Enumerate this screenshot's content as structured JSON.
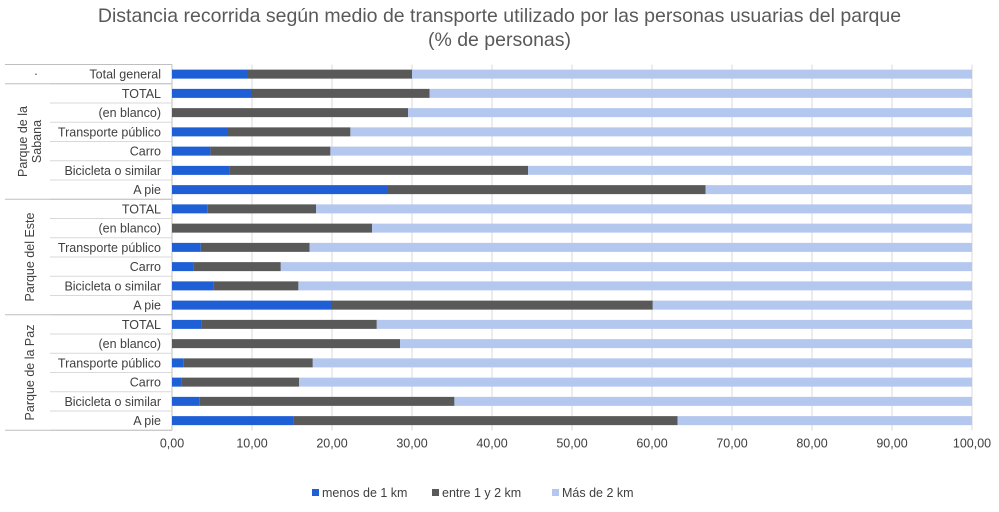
{
  "chart_data": {
    "type": "bar",
    "orientation": "horizontal",
    "stacked": true,
    "title": [
      "Distancia recorrida según medio de transporte utilizado por las personas usuarias del parque",
      "(% de personas)"
    ],
    "groups": [
      {
        "name": "·",
        "categories": [
          "Total general"
        ]
      },
      {
        "name": "Parque de la Sabana",
        "categories": [
          "TOTAL",
          "(en blanco)",
          "Transporte público",
          "Carro",
          "Bicicleta o similar",
          "A pie"
        ]
      },
      {
        "name": "Parque del Este",
        "categories": [
          "TOTAL",
          "(en blanco)",
          "Transporte público",
          "Carro",
          "Bicicleta o similar",
          "A pie"
        ]
      },
      {
        "name": "Parque de la Paz",
        "categories": [
          "TOTAL",
          "(en blanco)",
          "Transporte público",
          "Carro",
          "Bicicleta o similar",
          "A pie"
        ]
      }
    ],
    "series": [
      {
        "name": "menos de 1 km",
        "color": "#1f5fd6",
        "values": [
          9.5,
          10.0,
          0.0,
          7.0,
          4.8,
          7.2,
          27.0,
          4.4,
          0.0,
          3.6,
          2.7,
          5.2,
          20.0,
          3.7,
          0.0,
          1.4,
          1.2,
          3.4,
          15.2
        ]
      },
      {
        "name": "entre 1 y 2 km",
        "color": "#595959",
        "values": [
          20.5,
          22.2,
          29.5,
          15.3,
          15.0,
          37.3,
          39.7,
          13.6,
          25.0,
          13.6,
          10.9,
          10.6,
          40.1,
          21.9,
          28.5,
          16.2,
          14.7,
          31.9,
          48.0
        ]
      },
      {
        "name": "Más de 2 km",
        "color": "#b4c7ef",
        "values": [
          70.0,
          67.8,
          70.5,
          77.7,
          80.2,
          55.5,
          33.3,
          82.0,
          75.0,
          82.8,
          86.4,
          84.2,
          39.9,
          74.4,
          71.5,
          82.4,
          84.1,
          64.7,
          36.8
        ]
      }
    ],
    "xlim": [
      0,
      100
    ],
    "xticks": [
      "0,00",
      "10,00",
      "20,00",
      "30,00",
      "40,00",
      "50,00",
      "60,00",
      "70,00",
      "80,00",
      "90,00",
      "100,00"
    ],
    "grid": true,
    "legend_position": "bottom"
  }
}
